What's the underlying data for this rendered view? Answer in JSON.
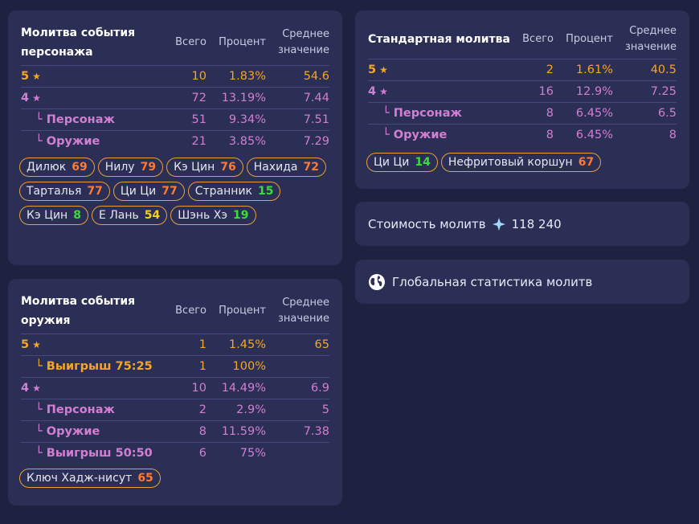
{
  "character_banner": {
    "title": "Молитва события персонажа",
    "headers": {
      "total": "Всего",
      "percent": "Процент",
      "average": "Среднее значение"
    },
    "rows": [
      {
        "label": "5",
        "star": "★",
        "total": "10",
        "percent": "1.83%",
        "average": "54.6",
        "tier": "5"
      },
      {
        "label": "4",
        "star": "★",
        "total": "72",
        "percent": "13.19%",
        "average": "7.44",
        "tier": "4"
      },
      {
        "label": "└ Персонаж",
        "total": "51",
        "percent": "9.34%",
        "average": "7.51",
        "tier": "4",
        "sub": true
      },
      {
        "label": "└ Оружие",
        "total": "21",
        "percent": "3.85%",
        "average": "7.29",
        "tier": "4",
        "sub": true
      }
    ],
    "pulls": [
      {
        "name": "Дилюк",
        "count": "69",
        "color": "orange"
      },
      {
        "name": "Нилу",
        "count": "79",
        "color": "orange"
      },
      {
        "name": "Кэ Цин",
        "count": "76",
        "color": "orange"
      },
      {
        "name": "Нахида",
        "count": "72",
        "color": "orange"
      },
      {
        "name": "Тарталья",
        "count": "77",
        "color": "orange"
      },
      {
        "name": "Ци Ци",
        "count": "77",
        "color": "orange"
      },
      {
        "name": "Странник",
        "count": "15",
        "color": "green"
      },
      {
        "name": "Кэ Цин",
        "count": "8",
        "color": "green"
      },
      {
        "name": "Е Лань",
        "count": "54",
        "color": "yellow"
      },
      {
        "name": "Шэнь Хэ",
        "count": "19",
        "color": "green"
      }
    ]
  },
  "weapon_banner": {
    "title": "Молитва события оружия",
    "headers": {
      "total": "Всего",
      "percent": "Процент",
      "average": "Среднее значение"
    },
    "rows": [
      {
        "label": "5",
        "star": "★",
        "total": "1",
        "percent": "1.45%",
        "average": "65",
        "tier": "5"
      },
      {
        "label": "└ Выигрыш 75:25",
        "total": "1",
        "percent": "100%",
        "average": "",
        "tier": "5",
        "sub": true
      },
      {
        "label": "4",
        "star": "★",
        "total": "10",
        "percent": "14.49%",
        "average": "6.9",
        "tier": "4"
      },
      {
        "label": "└ Персонаж",
        "total": "2",
        "percent": "2.9%",
        "average": "5",
        "tier": "4",
        "sub": true
      },
      {
        "label": "└ Оружие",
        "total": "8",
        "percent": "11.59%",
        "average": "7.38",
        "tier": "4",
        "sub": true
      },
      {
        "label": "└ Выигрыш 50:50",
        "total": "6",
        "percent": "75%",
        "average": "",
        "tier": "4",
        "sub": true
      }
    ],
    "pulls": [
      {
        "name": "Ключ Хадж-нисут",
        "count": "65",
        "color": "orange"
      }
    ]
  },
  "standard_banner": {
    "title": "Стандартная молитва",
    "headers": {
      "total": "Всего",
      "percent": "Процент",
      "average": "Среднее значение"
    },
    "rows": [
      {
        "label": "5",
        "star": "★",
        "total": "2",
        "percent": "1.61%",
        "average": "40.5",
        "tier": "5"
      },
      {
        "label": "4",
        "star": "★",
        "total": "16",
        "percent": "12.9%",
        "average": "7.25",
        "tier": "4"
      },
      {
        "label": "└ Персонаж",
        "total": "8",
        "percent": "6.45%",
        "average": "6.5",
        "tier": "4",
        "sub": true
      },
      {
        "label": "└ Оружие",
        "total": "8",
        "percent": "6.45%",
        "average": "8",
        "tier": "4",
        "sub": true
      }
    ],
    "pulls": [
      {
        "name": "Ци Ци",
        "count": "14",
        "color": "green"
      },
      {
        "name": "Нефритовый коршун",
        "count": "67",
        "color": "orange"
      }
    ]
  },
  "cost": {
    "label": "Стоимость молитв",
    "icon": "primogem-icon",
    "value": "118 240"
  },
  "global": {
    "label": "Глобальная статистика молитв",
    "icon": "globe-icon"
  },
  "colors": {
    "background": "#1f2140",
    "card": "#2b2e55",
    "five_star": "#f5a623",
    "four_star": "#d27fd2",
    "orange": "#ff7a33",
    "green": "#3ddc3d",
    "yellow": "#f2d21b"
  }
}
